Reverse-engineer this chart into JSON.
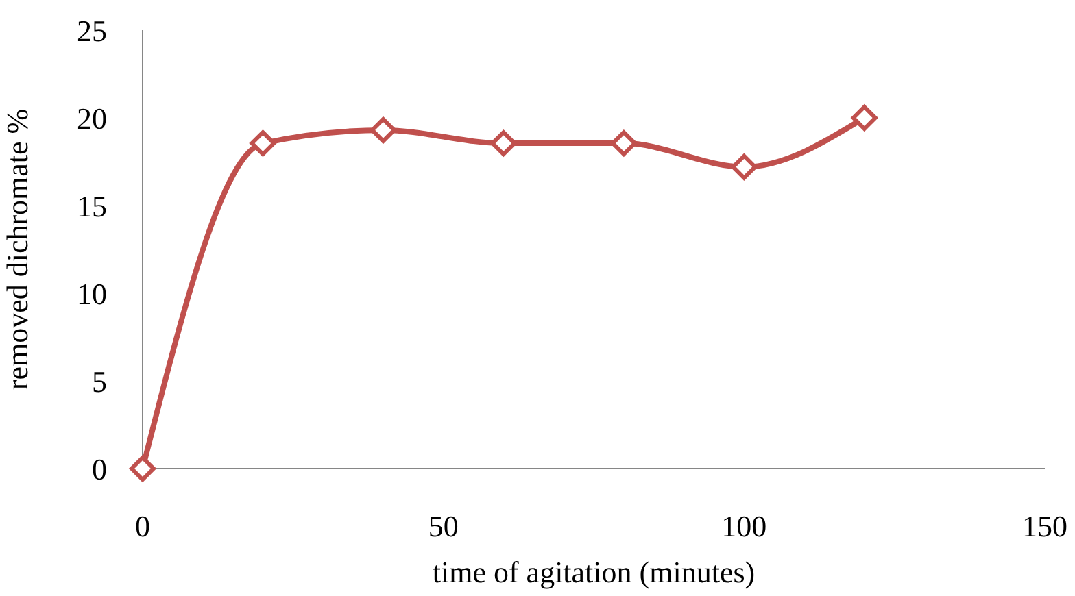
{
  "chart_data": {
    "type": "line",
    "xlabel": "time of agitation (minutes)",
    "ylabel": "removed dichromate %",
    "x": [
      0,
      20,
      40,
      60,
      80,
      100,
      120
    ],
    "series": [
      {
        "color": "#c0504d",
        "values": [
          0,
          18.55,
          19.3,
          18.55,
          18.55,
          17.2,
          20.0
        ]
      }
    ],
    "xlim": [
      0,
      150
    ],
    "xticks": [
      0,
      50,
      100,
      150
    ],
    "ylim": [
      0,
      25
    ],
    "yticks": [
      0,
      5,
      10,
      15,
      20,
      25
    ],
    "grid": false,
    "legend": false,
    "marker": "diamond",
    "line_style": "solid"
  }
}
